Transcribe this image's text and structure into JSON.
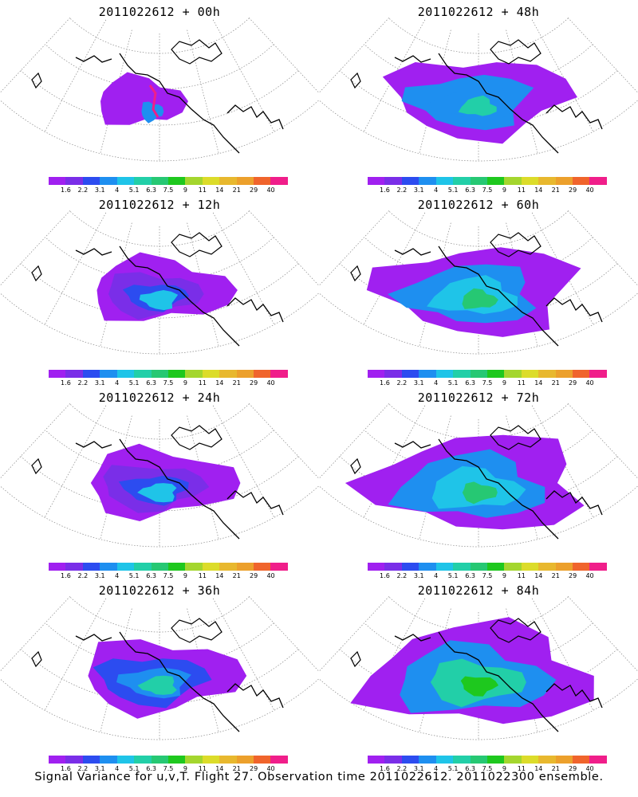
{
  "colorbar": {
    "labels": [
      "1.6",
      "2.2",
      "3.1",
      "4",
      "5.1",
      "6.3",
      "7.5",
      "9",
      "11",
      "14",
      "21",
      "29",
      "40"
    ],
    "colors": [
      "#a020f0",
      "#7a2ee8",
      "#2c4cf0",
      "#1e8ff0",
      "#1fc4e8",
      "#22cfa8",
      "#26c873",
      "#1ec81e",
      "#a4d62e",
      "#dcdc2a",
      "#e8b82e",
      "#eca02c",
      "#f0642c",
      "#f01e8a"
    ]
  },
  "panels": [
    {
      "id": "p00",
      "title": "2011022612 + 00h",
      "level": 0,
      "spike": true
    },
    {
      "id": "p48",
      "title": "2011022612 + 48h",
      "level": 3,
      "spike": false
    },
    {
      "id": "p12",
      "title": "2011022612 + 12h",
      "level": 1,
      "spike": false
    },
    {
      "id": "p60",
      "title": "2011022612 + 60h",
      "level": 4,
      "spike": false
    },
    {
      "id": "p24",
      "title": "2011022612 + 24h",
      "level": 1.5,
      "spike": false
    },
    {
      "id": "p72",
      "title": "2011022612 + 72h",
      "level": 5,
      "spike": false
    },
    {
      "id": "p36",
      "title": "2011022612 + 36h",
      "level": 2,
      "spike": false
    },
    {
      "id": "p84",
      "title": "2011022612 + 84h",
      "level": 6,
      "spike": false
    }
  ],
  "caption": "Signal Variance for u,v,T. Flight 27. Observation time 2011022612. 2011022300 ensemble."
}
